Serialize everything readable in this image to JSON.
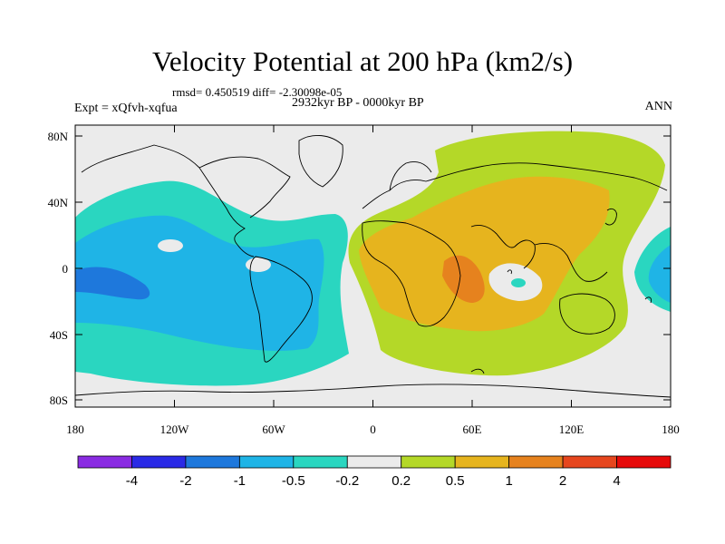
{
  "title": "Velocity Potential at 200 hPa (km2/s)",
  "stats": "rmsd= 0.450519 diff= -2.30098e-05",
  "experiment": "Expt = xQfvh-xqfua",
  "period": "2932kyr BP - 0000kyr BP",
  "season": "ANN",
  "map": {
    "lon_ticks": [
      "180",
      "120W",
      "60W",
      "0",
      "60E",
      "120E",
      "180"
    ],
    "lat_ticks": [
      "80N",
      "40N",
      "0",
      "40S",
      "80S"
    ],
    "land_color": "#ffffff",
    "ocean_color": "#ebebeb",
    "coast_color": "#000000"
  },
  "colorbar": {
    "labels": [
      "-4",
      "-2",
      "-1",
      "-0.5",
      "-0.2",
      "0.2",
      "0.5",
      "1",
      "2",
      "4"
    ],
    "colors": [
      "#8a2be2",
      "#2a2ae6",
      "#1e78dc",
      "#1fb4e6",
      "#2ad6c0",
      "#ebebeb",
      "#b4d828",
      "#e6b41e",
      "#e6821e",
      "#e6461e",
      "#e60a0a"
    ]
  }
}
